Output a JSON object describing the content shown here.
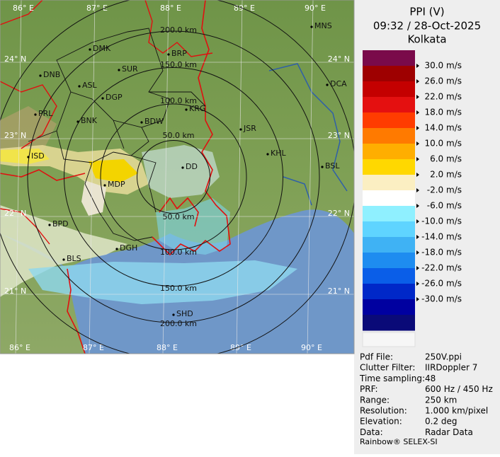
{
  "header": {
    "title": "PPI (V)",
    "time": "09:32 / 28-Oct-2025",
    "station": "Kolkata"
  },
  "legend": {
    "labels": [
      "30.0 m/s",
      "26.0 m/s",
      "22.0 m/s",
      "18.0 m/s",
      "14.0 m/s",
      "10.0 m/s",
      "6.0 m/s",
      "2.0 m/s",
      "-2.0 m/s",
      "-6.0 m/s",
      "-10.0 m/s",
      "-14.0 m/s",
      "-18.0 m/s",
      "-22.0 m/s",
      "-26.0 m/s",
      "-30.0 m/s"
    ],
    "colors": [
      "#7a0a4a",
      "#9e0000",
      "#c40000",
      "#e41010",
      "#ff3c00",
      "#ff7a00",
      "#ffae00",
      "#ffd800",
      "#fbefc2",
      "#ffffff",
      "#8ff0ff",
      "#5fd4ff",
      "#3fb2f4",
      "#1e8cf0",
      "#0a5ee8",
      "#0028c8",
      "#0000a0",
      "#0a0a78"
    ]
  },
  "map": {
    "lon_labels": [
      "86° E",
      "87° E",
      "88° E",
      "89° E",
      "90° E"
    ],
    "lon_labels_bottom": [
      "86° E",
      "87° E",
      "88° E",
      "89° E",
      "90° E"
    ],
    "lat_labels": [
      "24° N",
      "23° N",
      "22° N",
      "21° N"
    ],
    "lat_labels_right": [
      "24° N",
      "23° N",
      "22° N",
      "21° N"
    ],
    "range_labels": [
      "200.0 km",
      "150.0 km",
      "100.0 km",
      "50.0 km",
      "50.0 km",
      "100.0 km",
      "150.0 km",
      "200.0 km"
    ],
    "cities": [
      "MNS",
      "DMK",
      "BRP",
      "DNB",
      "SUR",
      "DCA",
      "ASL",
      "DGP",
      "KRG",
      "PRL",
      "BNK",
      "BDW",
      "JSR",
      "KHL",
      "ISD",
      "BSL",
      "DD",
      "MDP",
      "BPD",
      "BLS",
      "DGH",
      "SHD"
    ]
  },
  "info": {
    "rows": [
      [
        "Pdf File:",
        "250V.ppi"
      ],
      [
        "Clutter Filter:",
        "IIRDoppler 7"
      ],
      [
        "Time sampling:",
        "48"
      ],
      [
        "PRF:",
        "600 Hz / 450 Hz"
      ],
      [
        "Range:",
        "250 km"
      ],
      [
        "Resolution:",
        "1.000 km/pixel"
      ],
      [
        "Elevation:",
        "0.2 deg"
      ],
      [
        "Data:",
        "Radar Data"
      ]
    ],
    "footer": "Rainbow® SELEX-SI"
  }
}
